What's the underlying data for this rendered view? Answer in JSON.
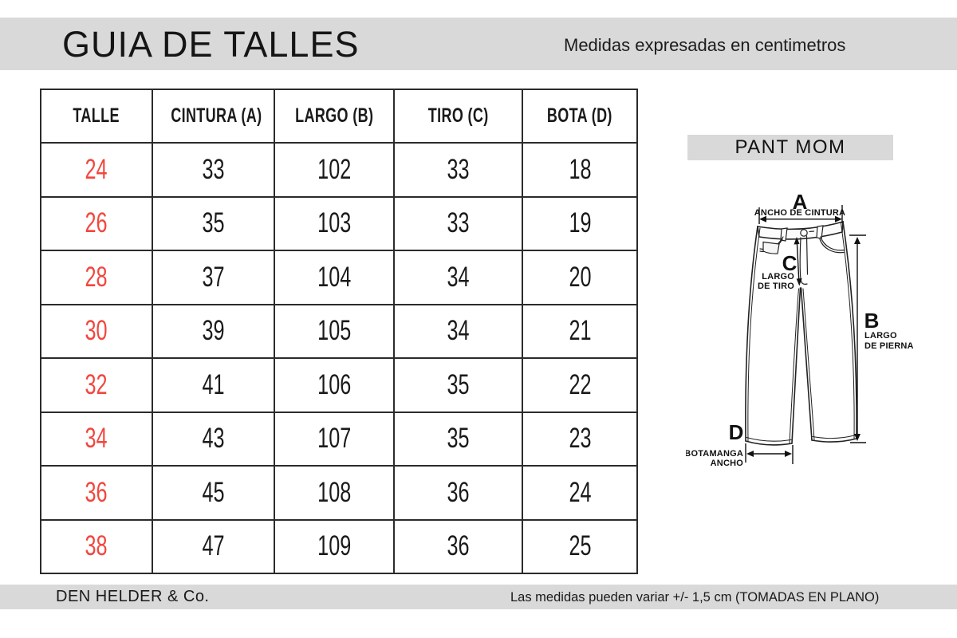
{
  "header": {
    "title": "GUIA DE TALLES",
    "subtitle": "Medidas expresadas en centimetros"
  },
  "size_table": {
    "columns": [
      "TALLE",
      "CINTURA (A)",
      "LARGO (B)",
      "TIRO (C)",
      "BOTA (D)"
    ],
    "rows": [
      [
        "24",
        "33",
        "102",
        "33",
        "18"
      ],
      [
        "26",
        "35",
        "103",
        "33",
        "19"
      ],
      [
        "28",
        "37",
        "104",
        "34",
        "20"
      ],
      [
        "30",
        "39",
        "105",
        "34",
        "21"
      ],
      [
        "32",
        "41",
        "106",
        "35",
        "22"
      ],
      [
        "34",
        "43",
        "107",
        "35",
        "23"
      ],
      [
        "36",
        "45",
        "108",
        "36",
        "24"
      ],
      [
        "38",
        "47",
        "109",
        "36",
        "25"
      ]
    ]
  },
  "product_tag": {
    "label": "PANT MOM"
  },
  "diagram": {
    "measures": {
      "a": {
        "letter": "A",
        "label": "ANCHO DE CINTURA"
      },
      "b": {
        "letter": "B",
        "label_line1": "LARGO",
        "label_line2": "DE PIERNA"
      },
      "c": {
        "letter": "C",
        "label_line1": "LARGO",
        "label_line2": "DE TIRO"
      },
      "d": {
        "letter": "D",
        "label_line1": "BOTAMANGA",
        "label_line2": "ANCHO"
      }
    }
  },
  "footer": {
    "brand": "DEN HELDER & Co.",
    "note": "Las medidas pueden variar +/- 1,5 cm (TOMADAS EN PLANO)"
  },
  "colors": {
    "bar_gray": "#d9d9d9",
    "size_red": "#f2463e",
    "line_dark": "#222222"
  }
}
